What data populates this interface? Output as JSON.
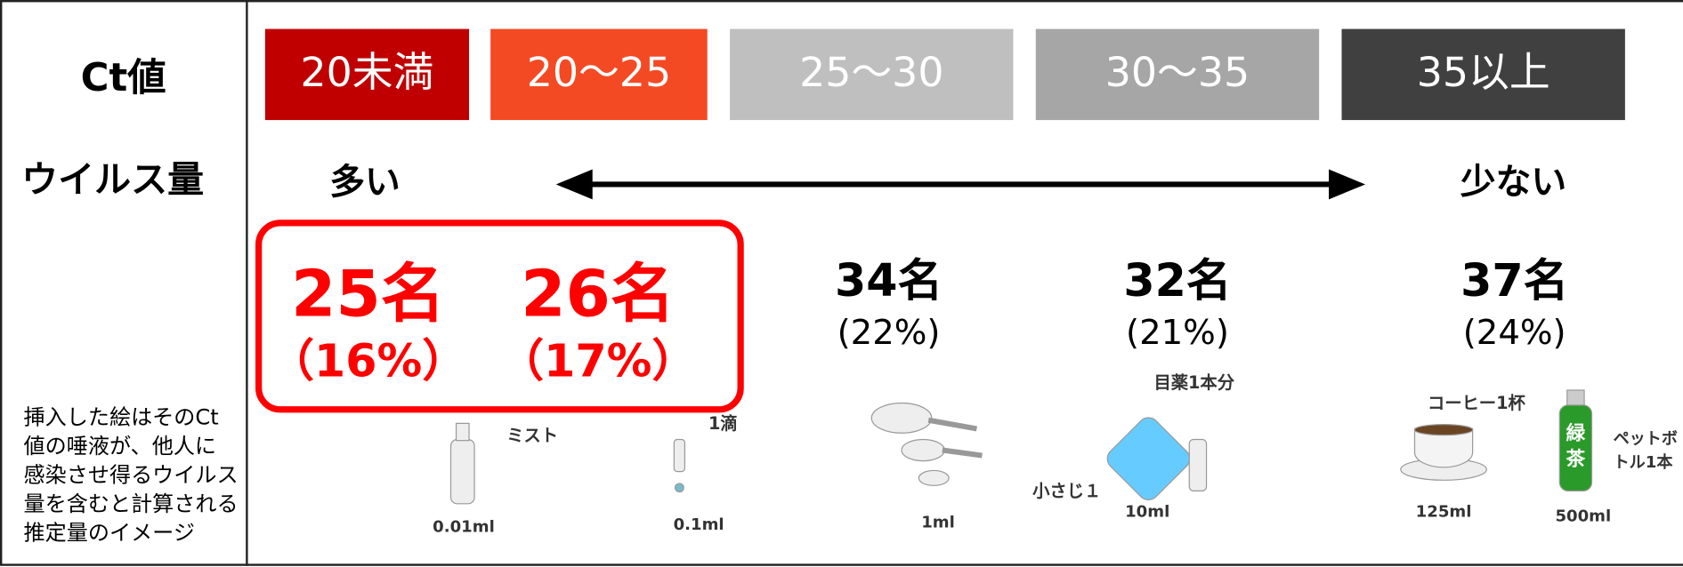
{
  "row_labels": {
    "ct": "Ct値",
    "virus": "ウイルス量"
  },
  "note_lines": [
    "挿入した絵はそのCt",
    "値の唾液が、他人に",
    "感染させ得るウイルス",
    "量を含むと計算される",
    "推定量のイメージ"
  ],
  "ct_ranges": [
    "20未満",
    "20～25",
    "25～30",
    "30～35",
    "35以上"
  ],
  "virus_scale": {
    "high": "多い",
    "low": "少ない"
  },
  "counts": [
    {
      "count": "25名",
      "percent": "（16%）"
    },
    {
      "count": "26名",
      "percent": "（17%）"
    },
    {
      "count": "34名",
      "percent": "(22%)"
    },
    {
      "count": "32名",
      "percent": "(21%)"
    },
    {
      "count": "37名",
      "percent": "(24%)"
    }
  ],
  "images": [
    {
      "label": "ミスト",
      "volume": "0.01ml"
    },
    {
      "label": "1滴",
      "volume": "0.1ml"
    },
    {
      "label": "小さじ１",
      "volume": "1ml"
    },
    {
      "label": "目薬1本分",
      "volume": "10ml"
    },
    {
      "label": "コーヒー1杯",
      "volume": "125ml"
    },
    {
      "label_lines": [
        "ペットボ",
        "トル1本"
      ],
      "volume": "500ml",
      "bottle_text": [
        "緑",
        "茶"
      ]
    }
  ]
}
